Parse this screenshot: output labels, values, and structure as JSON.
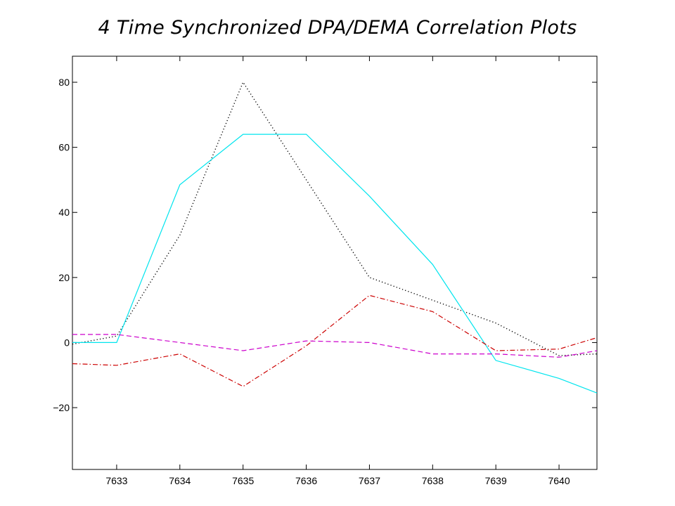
{
  "chart_data": {
    "type": "line",
    "title": "4 Time Synchronized DPA/DEMA Correlation Plots",
    "xlabel": "",
    "ylabel": "",
    "xlim": [
      7632.3,
      7640.6
    ],
    "ylim": [
      -39,
      88
    ],
    "xticks": [
      7633,
      7634,
      7635,
      7636,
      7637,
      7638,
      7639,
      7640
    ],
    "yticks": [
      -20,
      0,
      20,
      40,
      60,
      80
    ],
    "grid": false,
    "legend": "none",
    "series": [
      {
        "color": "#000000",
        "style": "dotted",
        "x": [
          7632.3,
          7633,
          7634,
          7635,
          7636,
          7637,
          7638,
          7639,
          7640,
          7640.6
        ],
        "y": [
          -0.5,
          2,
          33,
          80,
          50,
          20,
          13,
          6,
          -4,
          -3.5
        ]
      },
      {
        "color": "#00e5ee",
        "style": "solid",
        "x": [
          7632.3,
          7633,
          7634,
          7635,
          7636,
          7637,
          7638,
          7639,
          7640,
          7640.6
        ],
        "y": [
          0,
          0,
          48.5,
          64,
          64,
          45,
          24,
          -5.5,
          -11,
          -15.5
        ]
      },
      {
        "color": "#cc0000",
        "style": "dash-dot",
        "x": [
          7632.3,
          7633,
          7634,
          7635,
          7636,
          7637,
          7638,
          7639,
          7640,
          7640.6
        ],
        "y": [
          -6.5,
          -7,
          -3.5,
          -13.5,
          -1,
          14.5,
          9.5,
          -2.5,
          -2,
          1.5
        ]
      },
      {
        "color": "#cc00cc",
        "style": "dashed",
        "x": [
          7632.3,
          7633,
          7634,
          7635,
          7636,
          7637,
          7638,
          7639,
          7640,
          7640.6
        ],
        "y": [
          2.5,
          2.5,
          0,
          -2.5,
          0.5,
          0,
          -3.5,
          -3.5,
          -4.5,
          -2.5
        ]
      }
    ]
  }
}
